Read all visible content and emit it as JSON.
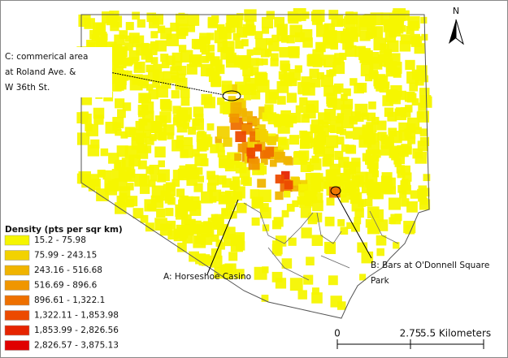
{
  "north_arrow": {
    "label": "N"
  },
  "annotations": [
    {
      "lines": [
        "C: commerical area",
        "at Roland Ave. &",
        "W 36th St."
      ]
    },
    {
      "lines": [
        "A: Horseshoe Casino"
      ]
    },
    {
      "lines": [
        "B: Bars at O'Donnell Square",
        "Park"
      ]
    }
  ],
  "legend": {
    "title": "Density (pts per sqr km)",
    "items": [
      {
        "label": "15.2 - 75.98",
        "color": "#f5f500"
      },
      {
        "label": "75.99 - 243.15",
        "color": "#f2d200"
      },
      {
        "label": "243.16 - 516.68",
        "color": "#f0b400"
      },
      {
        "label": "516.69 - 896.6",
        "color": "#f09600"
      },
      {
        "label": "896.61 - 1,322.1",
        "color": "#ee7000"
      },
      {
        "label": "1,322.11 - 1,853.98",
        "color": "#ec4a00"
      },
      {
        "label": "1,853.99 - 2,826.56",
        "color": "#e62400"
      },
      {
        "label": "2,826.57 - 3,875.13",
        "color": "#e00000"
      }
    ]
  },
  "scale_bar": {
    "labels": [
      "0",
      "2.75",
      "5.5 Kilometers"
    ]
  }
}
